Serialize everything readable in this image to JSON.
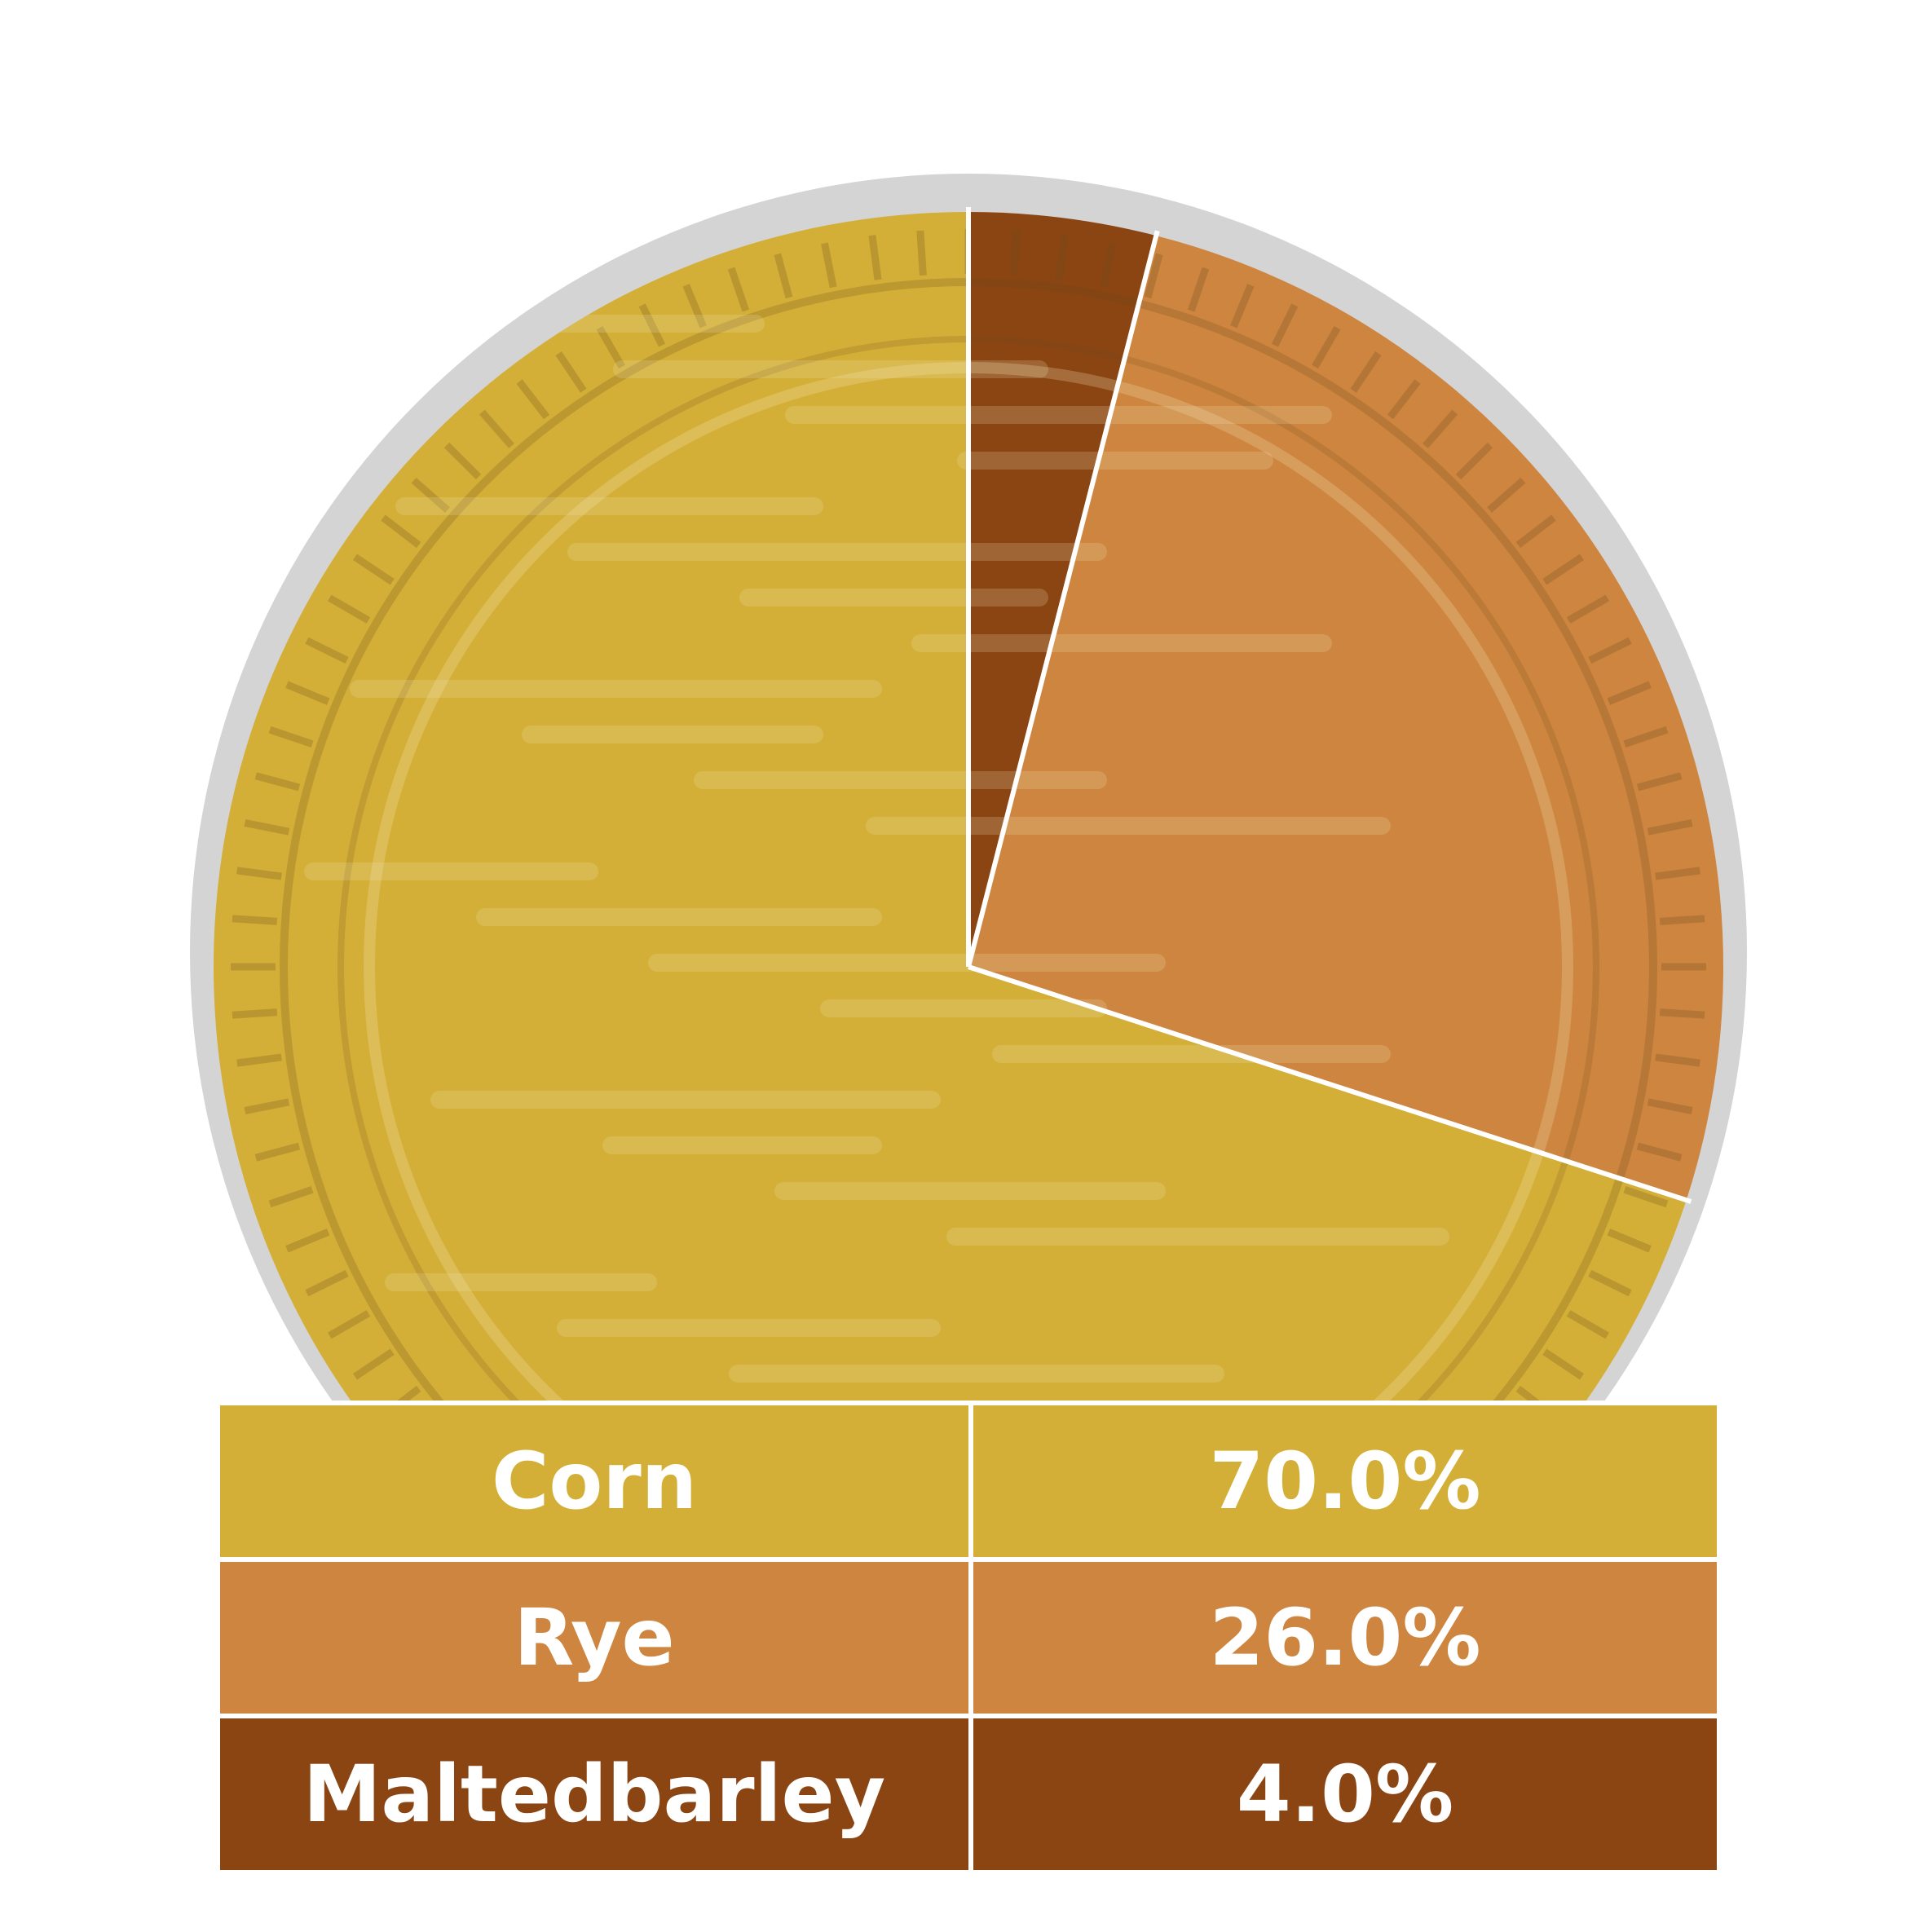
{
  "colors": {
    "rim": "#d4d4d4",
    "separator": "#ffffff",
    "stripe_light": "#f2e6b8",
    "stripe_dark": "#6b4a1a"
  },
  "chart_data": {
    "type": "pie",
    "title": "",
    "start_angle_deg": 0,
    "direction": "clockwise",
    "slices": [
      {
        "label": "Maltedbarley",
        "value": 4.0,
        "display": "4.0%",
        "color": "#8b4513"
      },
      {
        "label": "Rye",
        "value": 26.0,
        "display": "26.0%",
        "color": "#cd853f"
      },
      {
        "label": "Corn",
        "value": 70.0,
        "display": "70.0%",
        "color": "#d4af37"
      }
    ],
    "legend": {
      "placement": "bottom table",
      "rows": [
        {
          "label": "Corn",
          "display": "70.0%",
          "color": "#d4af37"
        },
        {
          "label": "Rye",
          "display": "26.0%",
          "color": "#cd853f"
        },
        {
          "label": "Maltedbarley",
          "display": "4.0%",
          "color": "#8b4513"
        }
      ]
    }
  }
}
